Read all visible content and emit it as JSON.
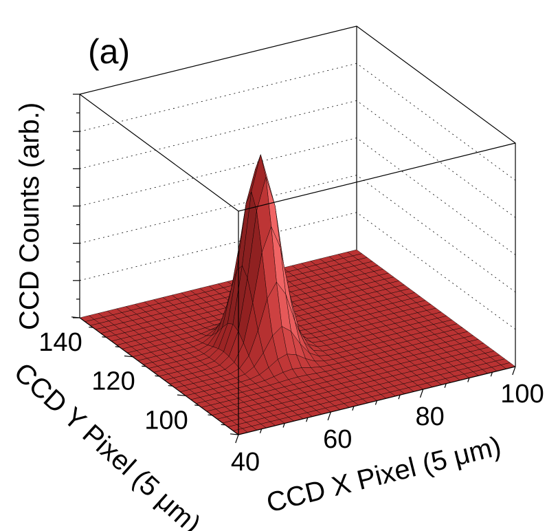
{
  "chart_data": {
    "type": "surface",
    "panel_label": "(a)",
    "zlabel": "CCD Counts (arb.)",
    "xlabel": "CCD X Pixel (5 μm)",
    "ylabel": "CCD Y Pixel (5 μm)",
    "x_ticks": [
      "40",
      "60",
      "80",
      "100"
    ],
    "y_ticks": [
      "100",
      "120",
      "140"
    ],
    "x_tick_values": [
      40,
      60,
      80,
      100
    ],
    "y_tick_values": [
      100,
      120,
      140
    ],
    "xlim": [
      40,
      100
    ],
    "ylim": [
      80,
      140
    ],
    "zlim": [
      0,
      1.0
    ],
    "peak": {
      "x": 62,
      "y": 110,
      "amplitude": 0.88,
      "sigma_x": 3.2,
      "sigma_y": 4.5
    },
    "baseline": 0.0,
    "grid": true,
    "surface_color": "#b23b3b",
    "grid_color": "#000000"
  }
}
